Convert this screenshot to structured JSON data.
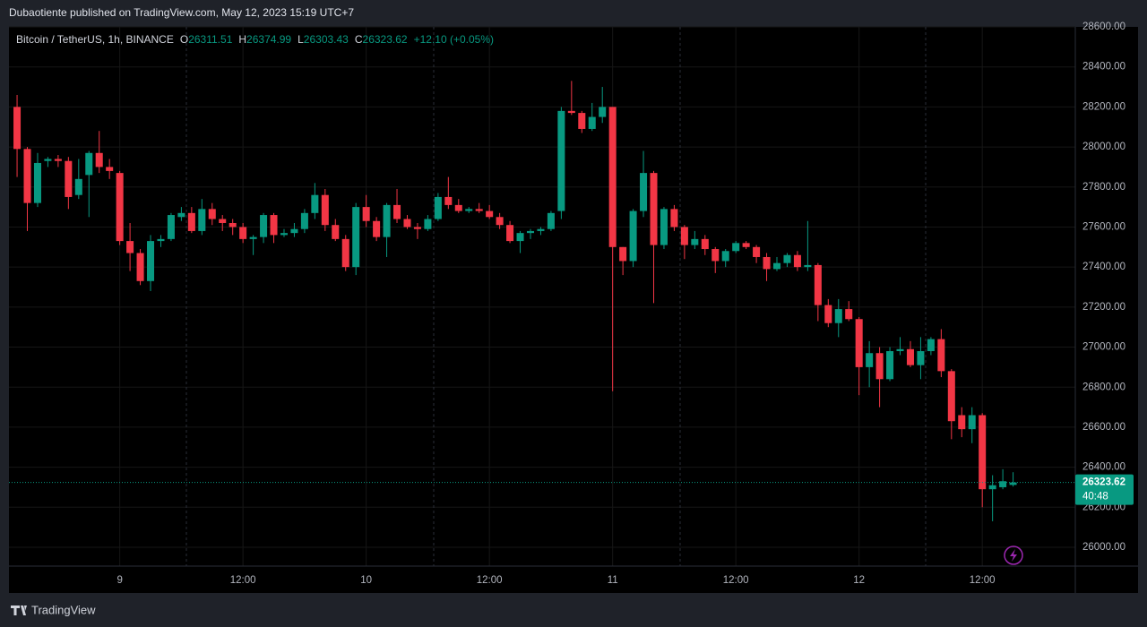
{
  "header": {
    "publisher": "Dubaotiente published on TradingView.com, May 12, 2023 15:19 UTC+7"
  },
  "footer": {
    "brand": "TradingView"
  },
  "chart_data": {
    "type": "candlestick",
    "title": "Bitcoin / TetherUS, 1h, BINANCE",
    "legend_keys": [
      "O",
      "H",
      "L",
      "C"
    ],
    "change": "+12.10 (+0.05%)",
    "countdown": "40:48",
    "up_color": "#089981",
    "down_color": "#f23645",
    "open": [
      28200,
      27990,
      27720,
      27930,
      27940,
      27930,
      27760,
      27860,
      27970,
      27900,
      27870,
      27530,
      27470,
      27330,
      27530,
      27540,
      27650,
      27670,
      27580,
      27690,
      27640,
      27620,
      27600,
      27540,
      27550,
      27660,
      27560,
      27570,
      27590,
      27670,
      27760,
      27610,
      27540,
      27400,
      27700,
      27630,
      27550,
      27710,
      27640,
      27600,
      27590,
      27640,
      27750,
      27710,
      27680,
      27690,
      27680,
      27650,
      27610,
      27530,
      27570,
      27580,
      27590,
      27680,
      28180,
      28170,
      28090,
      28150,
      28200,
      27500,
      27430,
      27680,
      27870,
      27510,
      27690,
      27600,
      27510,
      27540,
      27490,
      27430,
      27480,
      27520,
      27500,
      27450,
      27390,
      27420,
      27460,
      27400,
      27410,
      27210,
      27120,
      27190,
      27140,
      26900,
      26970,
      26840,
      26980,
      26990,
      26910,
      26980,
      27040,
      26880,
      26660,
      26590,
      26660,
      26290,
      26300,
      26311.51
    ],
    "high": [
      28260,
      28000,
      27970,
      27950,
      27960,
      27950,
      27940,
      27980,
      28080,
      27940,
      27880,
      27620,
      27490,
      27560,
      27560,
      27670,
      27700,
      27700,
      27740,
      27720,
      27660,
      27640,
      27620,
      27560,
      27670,
      27670,
      27590,
      27620,
      27690,
      27820,
      27790,
      27640,
      27560,
      27720,
      27760,
      27650,
      27720,
      27790,
      27660,
      27620,
      27660,
      27770,
      27850,
      27740,
      27700,
      27720,
      27710,
      27670,
      27630,
      27580,
      27590,
      27600,
      27680,
      28200,
      28330,
      28180,
      28220,
      28300,
      28200,
      27500,
      27690,
      27980,
      27880,
      27700,
      27710,
      27610,
      27580,
      27560,
      27500,
      27490,
      27530,
      27530,
      27510,
      27470,
      27450,
      27470,
      27480,
      27630,
      27420,
      27240,
      27240,
      27230,
      27150,
      27030,
      27000,
      27000,
      27050,
      27030,
      27050,
      27050,
      27090,
      26890,
      26700,
      26700,
      26670,
      26360,
      26390,
      26374.99
    ],
    "low": [
      27850,
      27580,
      27700,
      27900,
      27900,
      27690,
      27740,
      27650,
      27870,
      27840,
      27510,
      27380,
      27310,
      27280,
      27500,
      27530,
      27630,
      27570,
      27560,
      27610,
      27580,
      27560,
      27520,
      27460,
      27520,
      27520,
      27550,
      27550,
      27570,
      27640,
      27580,
      27530,
      27380,
      27360,
      27600,
      27530,
      27450,
      27620,
      27590,
      27540,
      27580,
      27630,
      27690,
      27670,
      27670,
      27670,
      27640,
      27590,
      27520,
      27470,
      27540,
      27560,
      27580,
      27640,
      28160,
      28070,
      28080,
      28120,
      26780,
      27360,
      27400,
      27650,
      27220,
      27490,
      27580,
      27440,
      27490,
      27460,
      27370,
      27400,
      27470,
      27490,
      27420,
      27330,
      27380,
      27400,
      27380,
      27380,
      27130,
      27100,
      27050,
      27130,
      26760,
      26800,
      26700,
      26830,
      26960,
      26900,
      26840,
      26960,
      26850,
      26540,
      26550,
      26520,
      26200,
      26130,
      26290,
      26303.43
    ],
    "close": [
      27990,
      27720,
      27920,
      27940,
      27930,
      27750,
      27840,
      27970,
      27900,
      27880,
      27530,
      27470,
      27330,
      27530,
      27540,
      27660,
      27670,
      27580,
      27690,
      27640,
      27620,
      27600,
      27540,
      27550,
      27660,
      27560,
      27570,
      27590,
      27670,
      27760,
      27610,
      27540,
      27400,
      27700,
      27630,
      27550,
      27710,
      27640,
      27600,
      27590,
      27640,
      27750,
      27710,
      27680,
      27690,
      27680,
      27650,
      27610,
      27530,
      27570,
      27580,
      27590,
      27670,
      28180,
      28170,
      28090,
      28150,
      28200,
      27500,
      27430,
      27680,
      27870,
      27510,
      27690,
      27600,
      27510,
      27540,
      27490,
      27430,
      27480,
      27520,
      27500,
      27450,
      27390,
      27420,
      27460,
      27400,
      27410,
      27210,
      27120,
      27190,
      27140,
      26900,
      26970,
      26840,
      26980,
      26990,
      26910,
      26980,
      27040,
      26880,
      26630,
      26590,
      26660,
      26290,
      26310,
      26330,
      26323.62
    ],
    "xlim": [
      -0.79,
      103.06
    ],
    "xticks": [
      {
        "value": 10,
        "label": "9"
      },
      {
        "value": 22,
        "label": "12:00"
      },
      {
        "value": 34,
        "label": "10"
      },
      {
        "value": 46,
        "label": "12:00"
      },
      {
        "value": 58,
        "label": "11"
      },
      {
        "value": 70,
        "label": "12:00"
      },
      {
        "value": 82,
        "label": "12"
      },
      {
        "value": 94,
        "label": "12:00"
      }
    ],
    "ylim": [
      25906,
      28600
    ],
    "yticks": [
      {
        "value": 26000,
        "label": "26000.00"
      },
      {
        "value": 26200,
        "label": "26200.00"
      },
      {
        "value": 26400,
        "label": "26400.00"
      },
      {
        "value": 26600,
        "label": "26600.00"
      },
      {
        "value": 26800,
        "label": "26800.00"
      },
      {
        "value": 27000,
        "label": "27000.00"
      },
      {
        "value": 27200,
        "label": "27200.00"
      },
      {
        "value": 27400,
        "label": "27400.00"
      },
      {
        "value": 27600,
        "label": "27600.00"
      },
      {
        "value": 27800,
        "label": "27800.00"
      },
      {
        "value": 28000,
        "label": "28000.00"
      },
      {
        "value": 28200,
        "label": "28200.00"
      },
      {
        "value": 28400,
        "label": "28400.00"
      },
      {
        "value": 28600,
        "label": "28600.00"
      }
    ],
    "grid": true
  }
}
